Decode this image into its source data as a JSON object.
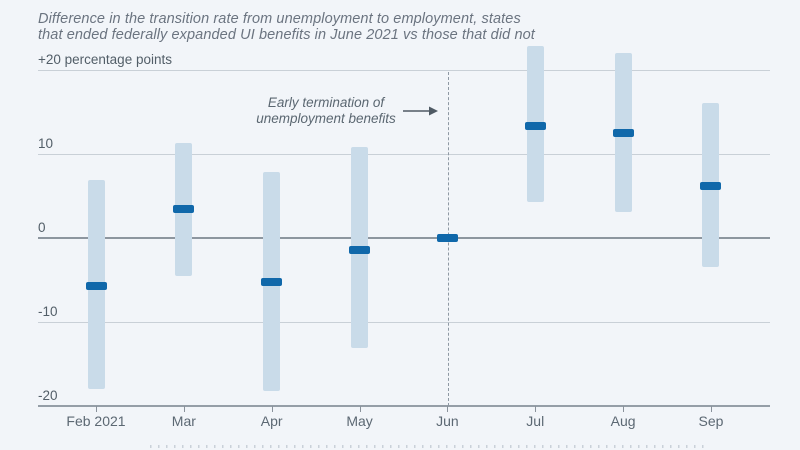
{
  "title": {
    "line1": "Difference in the transition rate from unemployment to employment, states",
    "line2": "that ended federally expanded UI benefits in June 2021 vs those that did not"
  },
  "annotation": {
    "line1": "Early termination of",
    "line2": "unemployment benefits"
  },
  "y_axis": {
    "ticks": [
      {
        "value": 20,
        "label": "+20 percentage points"
      },
      {
        "value": 10,
        "label": "10"
      },
      {
        "value": 0,
        "label": "0"
      },
      {
        "value": -10,
        "label": "-10"
      },
      {
        "value": -20,
        "label": "-20"
      }
    ]
  },
  "chart_data": {
    "type": "bar",
    "subtype": "interval-estimate (point estimate with confidence-interval bars)",
    "title": "Difference in the transition rate from unemployment to employment, states that ended federally expanded UI benefits in June 2021 vs those that did not",
    "xlabel": "",
    "ylabel": "+20 percentage points (top axis label)",
    "categories": [
      "Feb 2021",
      "Mar",
      "Apr",
      "May",
      "Jun",
      "Jul",
      "Aug",
      "Sep"
    ],
    "series": [
      {
        "name": "estimate",
        "values": [
          -5.7,
          3.4,
          -5.3,
          -1.4,
          0,
          13.4,
          12.5,
          6.2
        ]
      },
      {
        "name": "ci_low",
        "values": [
          -18.0,
          -4.5,
          -18.3,
          -13.1,
          0,
          4.3,
          3.1,
          -3.5
        ]
      },
      {
        "name": "ci_high",
        "values": [
          6.9,
          11.3,
          7.9,
          10.8,
          0,
          22.9,
          22.1,
          16.1
        ]
      }
    ],
    "ylim": [
      -20,
      20
    ],
    "yticks": [
      20,
      10,
      0,
      -10,
      -20
    ],
    "grid": true,
    "legend": "none",
    "event_line": {
      "at_category": "Jun",
      "style": "vertical dashed",
      "label": "Early termination of unemployment benefits"
    }
  },
  "colors": {
    "background": "#f2f5f9",
    "ci_bar": "#c9dbe9",
    "estimate_marker": "#1068aa",
    "gridline": "#c9d0d7",
    "zero_line": "#8d969f",
    "axis_line": "#959ea7",
    "dashed_line": "#8e98a3",
    "arrow": "#4f5a64",
    "title_text": "#6b7480",
    "label_text": "#5c6873"
  }
}
